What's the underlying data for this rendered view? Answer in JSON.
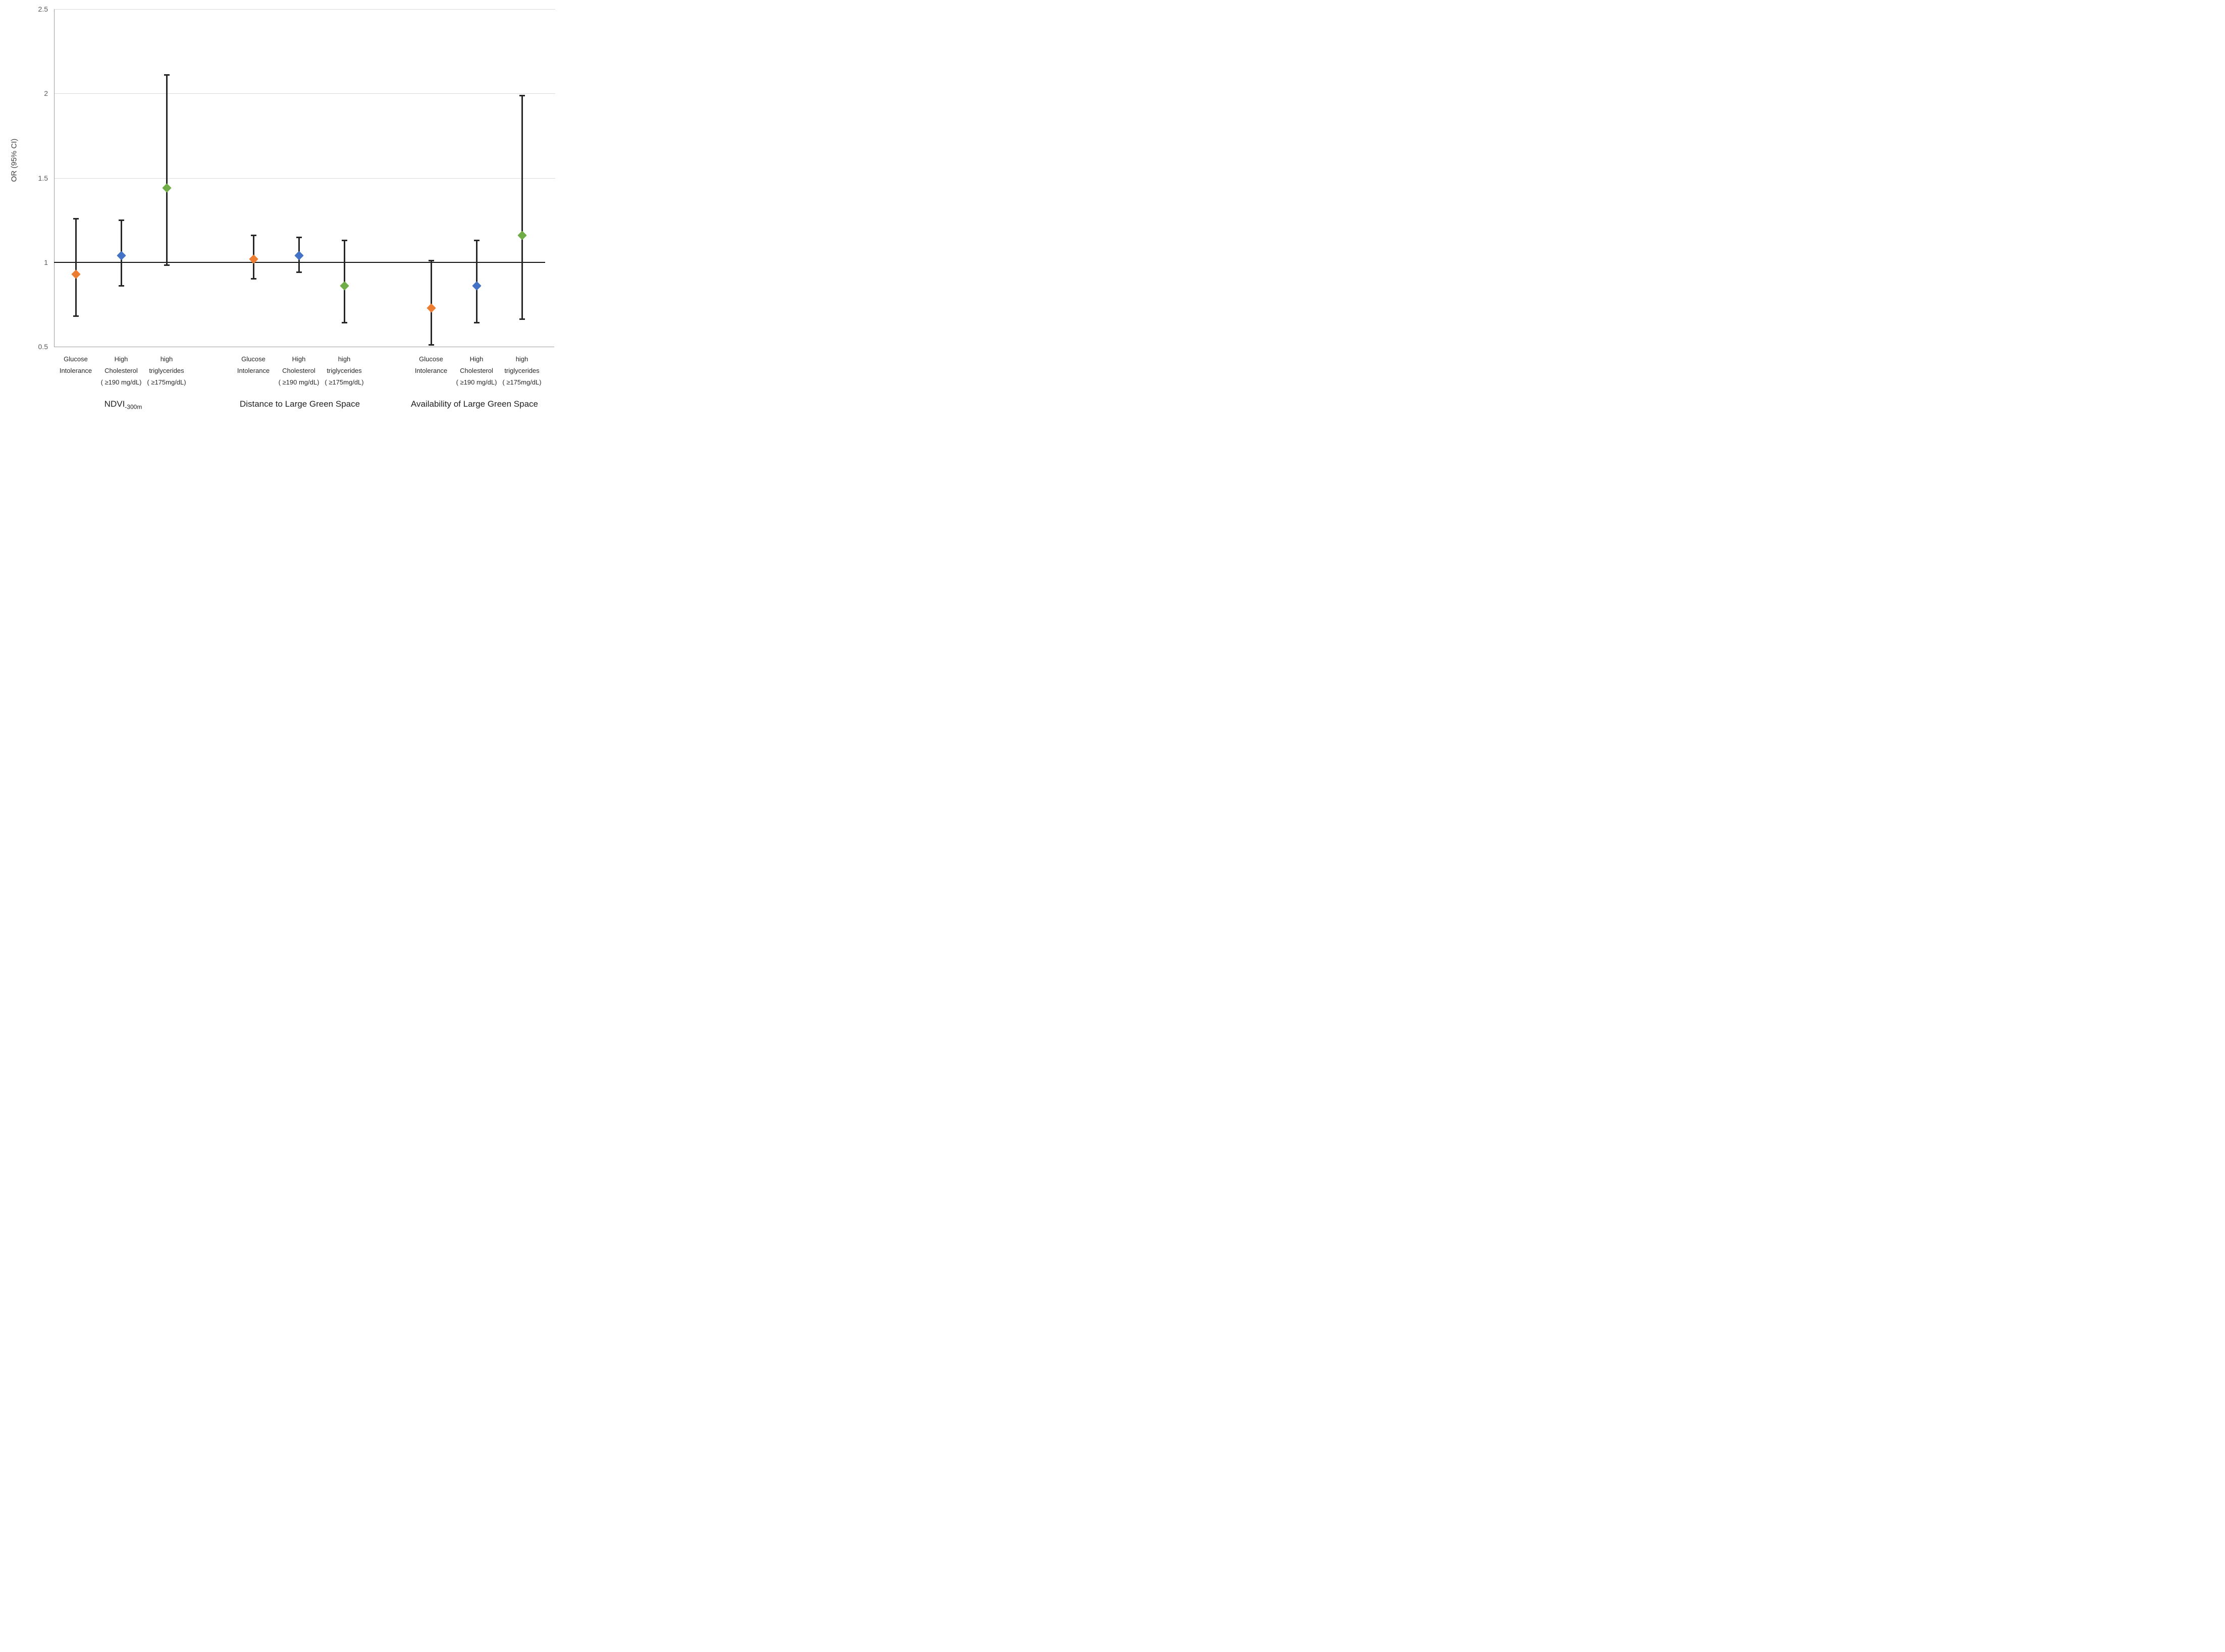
{
  "chart_data": {
    "type": "scatter",
    "title": "",
    "ylabel": "OR (95% CI)",
    "ylim": [
      0.5,
      2.5
    ],
    "yticks": [
      {
        "label": "2.5",
        "value": 2.5
      },
      {
        "label": "2",
        "value": 2.0
      },
      {
        "label": "1.5",
        "value": 1.5
      },
      {
        "label": "1",
        "value": 1.0
      },
      {
        "label": "0.5",
        "value": 0.5
      }
    ],
    "reference_line": 1.0,
    "grid": true,
    "legend": "none",
    "series": [
      {
        "name": "Glucose Intolerance",
        "color": "#ED7D31"
      },
      {
        "name": "High Cholesterol ( ≥190 mg/dL)",
        "color": "#4472C4"
      },
      {
        "name": "high triglycerides ( ≥175mg/dL)",
        "color": "#70AD47"
      }
    ],
    "groups": [
      {
        "label": "NDVI",
        "label_subscript": "-300m",
        "points": [
          {
            "outcome_lines": [
              "Glucose",
              "Intolerance"
            ],
            "or": 0.93,
            "ci_low": 0.68,
            "ci_high": 1.26,
            "color": "#ED7D31"
          },
          {
            "outcome_lines": [
              "High",
              "Cholesterol",
              "( ≥190 mg/dL)"
            ],
            "or": 1.04,
            "ci_low": 0.86,
            "ci_high": 1.25,
            "color": "#4472C4"
          },
          {
            "outcome_lines": [
              "high",
              "triglycerides",
              "( ≥175mg/dL)"
            ],
            "or": 1.44,
            "ci_low": 0.98,
            "ci_high": 2.11,
            "color": "#70AD47"
          }
        ]
      },
      {
        "label": "Distance to Large Green Space",
        "label_subscript": "",
        "points": [
          {
            "outcome_lines": [
              "Glucose",
              "Intolerance"
            ],
            "or": 1.02,
            "ci_low": 0.9,
            "ci_high": 1.16,
            "color": "#ED7D31"
          },
          {
            "outcome_lines": [
              "High",
              "Cholesterol",
              "( ≥190 mg/dL)"
            ],
            "or": 1.04,
            "ci_low": 0.94,
            "ci_high": 1.15,
            "color": "#4472C4"
          },
          {
            "outcome_lines": [
              "high",
              "triglycerides",
              "( ≥175mg/dL)"
            ],
            "or": 0.86,
            "ci_low": 0.64,
            "ci_high": 1.13,
            "color": "#70AD47"
          }
        ]
      },
      {
        "label": "Availability of Large Green Space",
        "label_subscript": "",
        "points": [
          {
            "outcome_lines": [
              "Glucose",
              "Intolerance"
            ],
            "or": 0.73,
            "ci_low": 0.51,
            "ci_high": 1.01,
            "color": "#ED7D31"
          },
          {
            "outcome_lines": [
              "High",
              "Cholesterol",
              "( ≥190 mg/dL)"
            ],
            "or": 0.86,
            "ci_low": 0.64,
            "ci_high": 1.13,
            "color": "#4472C4"
          },
          {
            "outcome_lines": [
              "high",
              "triglycerides",
              "( ≥175mg/dL)"
            ],
            "or": 1.16,
            "ci_low": 0.66,
            "ci_high": 1.99,
            "color": "#70AD47"
          }
        ]
      }
    ]
  }
}
